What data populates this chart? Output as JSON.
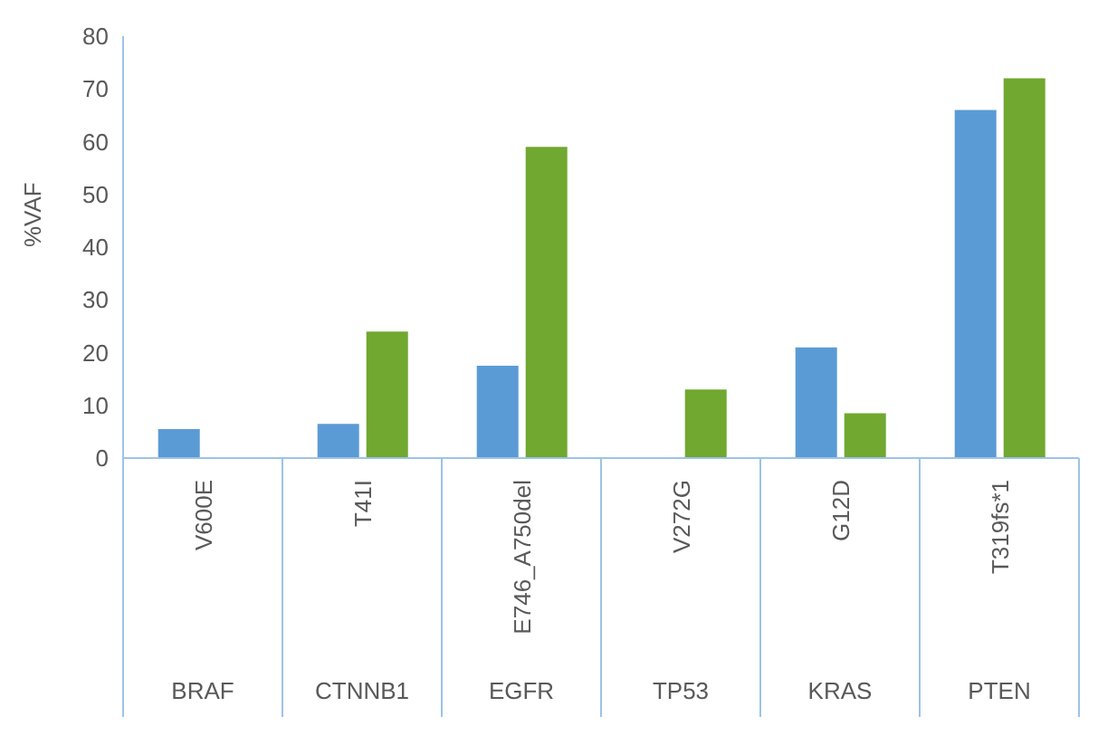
{
  "chart_data": {
    "type": "bar",
    "ylabel": "%VAF",
    "categories": [
      "V600E",
      "T41I",
      "E746_A750del",
      "V272G",
      "G12D",
      "T319fs*1"
    ],
    "annotations": [
      "BRAF",
      "CTNNB1",
      "EGFR",
      "TP53",
      "KRAS",
      "PTEN"
    ],
    "series": [
      {
        "color": "#5b9bd5",
        "values": [
          5.5,
          6.5,
          17.5,
          null,
          21,
          66
        ]
      },
      {
        "color": "#70a830",
        "values": [
          null,
          24,
          59,
          13,
          8.5,
          72
        ]
      }
    ],
    "ylim": [
      0,
      80
    ],
    "yticks": [
      0,
      10,
      20,
      30,
      40,
      50,
      60,
      70,
      80
    ],
    "grid": false,
    "legend": false
  }
}
